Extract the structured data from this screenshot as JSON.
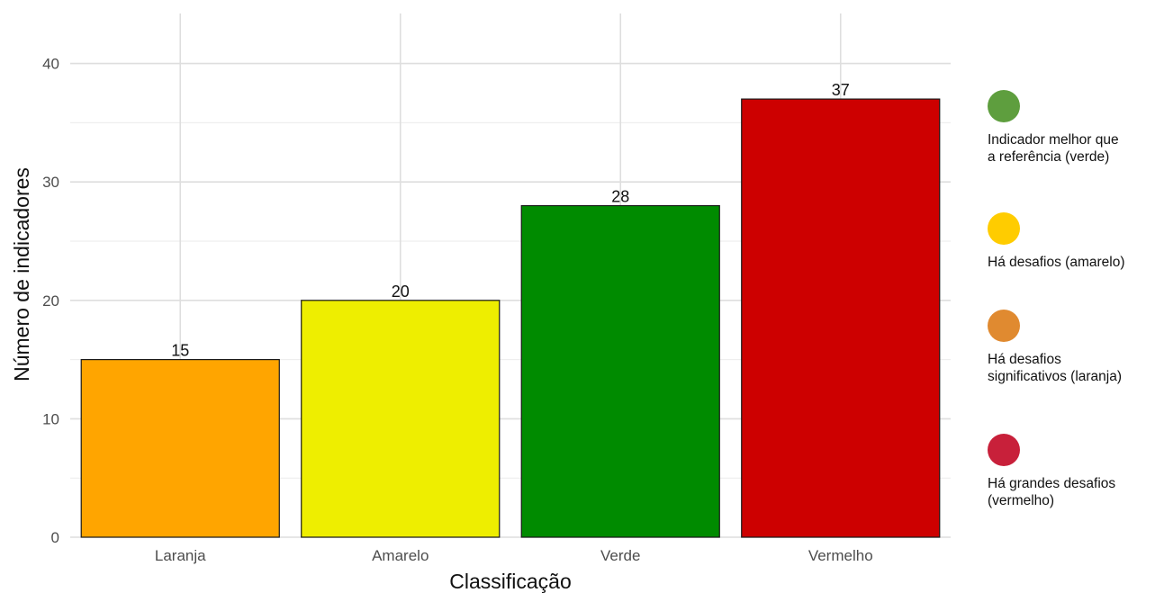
{
  "chart_data": {
    "type": "bar",
    "title": "",
    "xlabel": "Classificação",
    "ylabel": "Número de indicadores",
    "categories": [
      "Laranja",
      "Amarelo",
      "Verde",
      "Vermelho"
    ],
    "values": [
      15,
      20,
      28,
      37
    ],
    "data_labels": [
      "15",
      "20",
      "28",
      "37"
    ],
    "bar_colors": [
      "#FFA500",
      "#EEEE00",
      "#008B00",
      "#CD0000"
    ],
    "ylim": [
      0,
      44
    ],
    "yticks": [
      0,
      10,
      20,
      30,
      40
    ],
    "grid": true,
    "legend_position": "right"
  },
  "legend": {
    "items": [
      {
        "label_lines": [
          "Indicador melhor que",
          "a referência (verde)"
        ],
        "color": "#5E9E3E"
      },
      {
        "label_lines": [
          "Há desafios (amarelo)"
        ],
        "color": "#FFCC00"
      },
      {
        "label_lines": [
          "Há desafios",
          "significativos (laranja)"
        ],
        "color": "#E08A30"
      },
      {
        "label_lines": [
          "Há grandes desafios",
          "(vermelho)"
        ],
        "color": "#C8203A"
      }
    ]
  }
}
